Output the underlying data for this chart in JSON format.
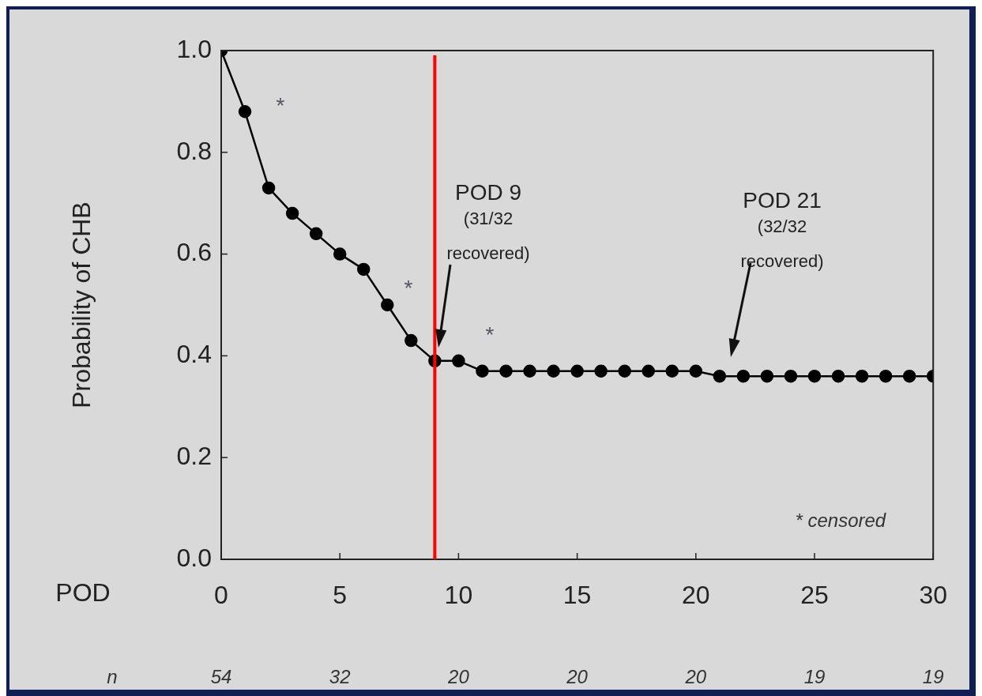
{
  "chart_data": {
    "type": "line",
    "xlabel": "POD",
    "ylabel": "Probability of CHB",
    "x": [
      0,
      1,
      2,
      3,
      4,
      5,
      6,
      7,
      8,
      9,
      10,
      11,
      12,
      13,
      14,
      15,
      16,
      17,
      18,
      19,
      20,
      21,
      22,
      23,
      24,
      25,
      26,
      27,
      28,
      29,
      30
    ],
    "series": [
      {
        "color": "#000000",
        "values": [
          1.0,
          0.88,
          0.73,
          0.68,
          0.64,
          0.6,
          0.57,
          0.5,
          0.43,
          0.39,
          0.39,
          0.37,
          0.37,
          0.37,
          0.37,
          0.37,
          0.37,
          0.37,
          0.37,
          0.37,
          0.37,
          0.36,
          0.36,
          0.36,
          0.36,
          0.36,
          0.36,
          0.36,
          0.36,
          0.36,
          0.36
        ]
      }
    ],
    "xlim": [
      0,
      30
    ],
    "xticks": [
      0,
      5,
      10,
      15,
      20,
      25,
      30
    ],
    "ylim": [
      0,
      1
    ],
    "yticks": [
      {
        "value": 0,
        "label": "0.0"
      },
      {
        "value": 0.2,
        "label": "0.2"
      },
      {
        "value": 0.4,
        "label": "0.4"
      },
      {
        "value": 0.6,
        "label": "0.6"
      },
      {
        "value": 0.8,
        "label": "0.8"
      },
      {
        "value": 1,
        "label": "1.0"
      }
    ],
    "grid": false,
    "legend": false,
    "marker": "circle",
    "line_style": "solid",
    "ref_lines": [
      {
        "axis": "x",
        "value": 9,
        "color": "#ff0000"
      }
    ],
    "annotations": [
      "POD 9\n(31/32\nrecovered)",
      "POD 21\n(32/32\nrecovered)",
      "*",
      "*",
      "*",
      "* censored",
      "n",
      "54",
      "32",
      "20",
      "20",
      "20",
      "19",
      "19"
    ]
  }
}
